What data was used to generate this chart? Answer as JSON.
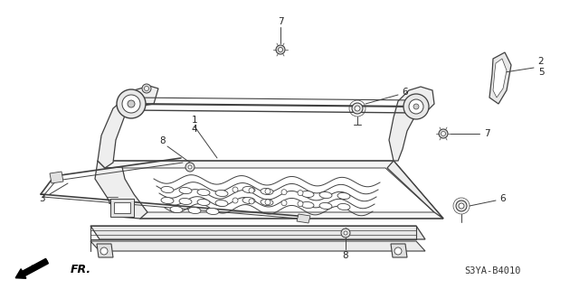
{
  "part_code": "S3YA-B4010",
  "fr_label": "FR.",
  "background_color": "#ffffff",
  "line_color": "#404040",
  "label_color": "#222222",
  "figsize": [
    6.4,
    3.2
  ],
  "dpi": 100,
  "label_fontsize": 7.5
}
